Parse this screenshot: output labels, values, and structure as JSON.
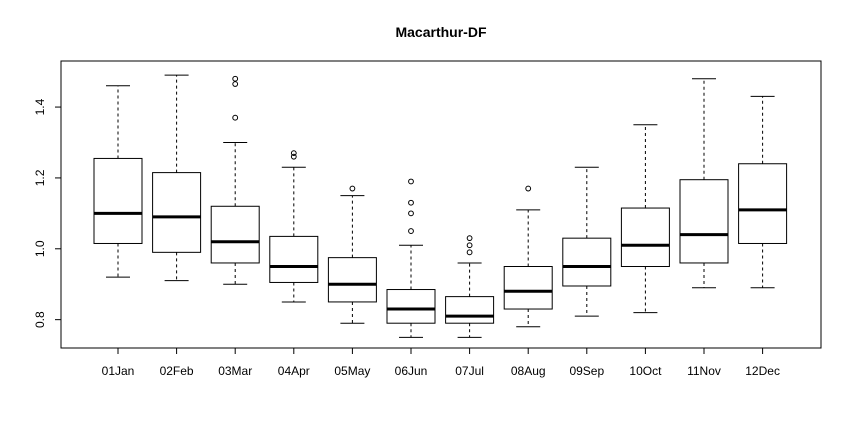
{
  "chart_data": {
    "type": "box",
    "title": "Macarthur-DF",
    "xlabel": "",
    "ylabel": "",
    "ylim": [
      0.72,
      1.53
    ],
    "yticks": [
      0.8,
      1.0,
      1.2,
      1.4
    ],
    "ytick_labels": [
      "0.8",
      "1.0",
      "1.2",
      "1.4"
    ],
    "grid": false,
    "legend": "none",
    "categories": [
      "01Jan",
      "02Feb",
      "03Mar",
      "04Apr",
      "05May",
      "06Jun",
      "07Jul",
      "08Aug",
      "09Sep",
      "10Oct",
      "11Nov",
      "12Dec"
    ],
    "boxes": [
      {
        "whisker_low": 0.92,
        "q1": 1.015,
        "median": 1.1,
        "q3": 1.255,
        "whisker_high": 1.46,
        "outliers": []
      },
      {
        "whisker_low": 0.91,
        "q1": 0.99,
        "median": 1.09,
        "q3": 1.215,
        "whisker_high": 1.49,
        "outliers": []
      },
      {
        "whisker_low": 0.9,
        "q1": 0.96,
        "median": 1.02,
        "q3": 1.12,
        "whisker_high": 1.3,
        "outliers": [
          1.37,
          1.465,
          1.48
        ]
      },
      {
        "whisker_low": 0.85,
        "q1": 0.905,
        "median": 0.95,
        "q3": 1.035,
        "whisker_high": 1.23,
        "outliers": [
          1.26,
          1.27
        ]
      },
      {
        "whisker_low": 0.79,
        "q1": 0.85,
        "median": 0.9,
        "q3": 0.975,
        "whisker_high": 1.15,
        "outliers": [
          1.17
        ]
      },
      {
        "whisker_low": 0.75,
        "q1": 0.79,
        "median": 0.83,
        "q3": 0.885,
        "whisker_high": 1.01,
        "outliers": [
          1.05,
          1.1,
          1.13,
          1.19
        ]
      },
      {
        "whisker_low": 0.75,
        "q1": 0.79,
        "median": 0.81,
        "q3": 0.865,
        "whisker_high": 0.96,
        "outliers": [
          0.99,
          1.01,
          1.03
        ]
      },
      {
        "whisker_low": 0.78,
        "q1": 0.83,
        "median": 0.88,
        "q3": 0.95,
        "whisker_high": 1.11,
        "outliers": [
          1.17
        ]
      },
      {
        "whisker_low": 0.81,
        "q1": 0.895,
        "median": 0.95,
        "q3": 1.03,
        "whisker_high": 1.23,
        "outliers": []
      },
      {
        "whisker_low": 0.82,
        "q1": 0.95,
        "median": 1.01,
        "q3": 1.115,
        "whisker_high": 1.35,
        "outliers": []
      },
      {
        "whisker_low": 0.89,
        "q1": 0.96,
        "median": 1.04,
        "q3": 1.195,
        "whisker_high": 1.48,
        "outliers": []
      },
      {
        "whisker_low": 0.89,
        "q1": 1.015,
        "median": 1.11,
        "q3": 1.24,
        "whisker_high": 1.43,
        "outliers": []
      }
    ]
  }
}
